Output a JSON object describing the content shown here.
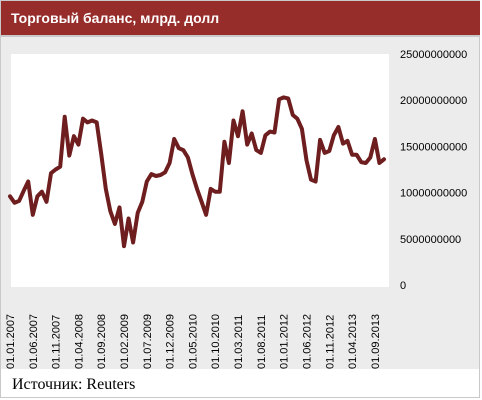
{
  "title": "Торговый баланс, млрд. долл",
  "source": "Источник: Reuters",
  "colors": {
    "title_bg": "#962d2b",
    "line": "#6e1e1e",
    "panel_bg": "#ececec"
  },
  "chart_data": {
    "type": "line",
    "title": "Торговый баланс, млрд. долл",
    "xlabel": "",
    "ylabel": "",
    "ylim": [
      0,
      25000000000
    ],
    "yticks": [
      0,
      5000000000,
      10000000000,
      15000000000,
      20000000000,
      25000000000
    ],
    "ytick_labels": [
      "0",
      "5000000000",
      "10000000000",
      "15000000000",
      "20000000000",
      "25000000000"
    ],
    "xtick_labels": [
      "01.01.2007",
      "01.06.2007",
      "01.11.2007",
      "01.04.2008",
      "01.09.2008",
      "01.02.2009",
      "01.07.2009",
      "01.12.2009",
      "01.05.2010",
      "01.10.2010",
      "01.03.2011",
      "01.08.2011",
      "01.01.2012",
      "01.06.2012",
      "01.11.2012",
      "01.04.2013",
      "01.09.2013"
    ],
    "grid": false,
    "legend": "none",
    "series": [
      {
        "x": [
          "01.2007",
          "02.2007",
          "03.2007",
          "04.2007",
          "05.2007",
          "06.2007",
          "07.2007",
          "08.2007",
          "09.2007",
          "10.2007",
          "11.2007",
          "12.2007",
          "01.2008",
          "02.2008",
          "03.2008",
          "04.2008",
          "05.2008",
          "06.2008",
          "07.2008",
          "08.2008",
          "09.2008",
          "10.2008",
          "11.2008",
          "12.2008",
          "01.2009",
          "02.2009",
          "03.2009",
          "04.2009",
          "05.2009",
          "06.2009",
          "07.2009",
          "08.2009",
          "09.2009",
          "10.2009",
          "11.2009",
          "12.2009",
          "01.2010",
          "02.2010",
          "03.2010",
          "04.2010",
          "05.2010",
          "06.2010",
          "07.2010",
          "08.2010",
          "09.2010",
          "10.2010",
          "11.2010",
          "12.2010",
          "01.2011",
          "02.2011",
          "03.2011",
          "04.2011",
          "05.2011",
          "06.2011",
          "07.2011",
          "08.2011",
          "09.2011",
          "10.2011",
          "11.2011",
          "12.2011",
          "01.2012",
          "02.2012",
          "03.2012",
          "04.2012",
          "05.2012",
          "06.2012",
          "07.2012",
          "08.2012",
          "09.2012",
          "10.2012",
          "11.2012",
          "12.2012",
          "01.2013",
          "02.2013",
          "03.2013",
          "04.2013",
          "05.2013",
          "06.2013",
          "07.2013",
          "08.2013",
          "09.2013",
          "10.2013",
          "11.2013"
        ],
        "values": [
          9600000000,
          8900000000,
          9100000000,
          10200000000,
          11200000000,
          7600000000,
          9600000000,
          10100000000,
          9000000000,
          12100000000,
          12500000000,
          12800000000,
          18200000000,
          14000000000,
          16100000000,
          15200000000,
          18000000000,
          17600000000,
          17800000000,
          17600000000,
          14200000000,
          10400000000,
          8000000000,
          6600000000,
          8400000000,
          4200000000,
          7200000000,
          4600000000,
          7800000000,
          9000000000,
          11200000000,
          12000000000,
          11800000000,
          11900000000,
          12200000000,
          13200000000,
          15800000000,
          14800000000,
          14600000000,
          13800000000,
          12000000000,
          10400000000,
          9000000000,
          7600000000,
          10400000000,
          10100000000,
          10100000000,
          15500000000,
          13200000000,
          17800000000,
          16100000000,
          18800000000,
          15200000000,
          16400000000,
          14600000000,
          14300000000,
          16200000000,
          16600000000,
          16500000000,
          20100000000,
          20300000000,
          20200000000,
          18400000000,
          18000000000,
          16900000000,
          13500000000,
          11400000000,
          11200000000,
          15700000000,
          14300000000,
          14500000000,
          16200000000,
          17100000000,
          15300000000,
          15600000000,
          14100000000,
          14100000000,
          13300000000,
          13200000000,
          13800000000,
          15800000000,
          13200000000,
          13600000000
        ]
      }
    ]
  }
}
